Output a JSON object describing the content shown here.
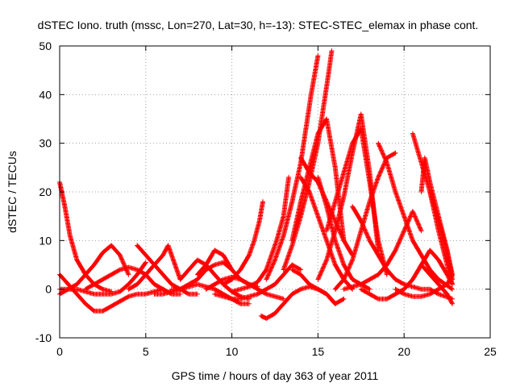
{
  "chart_data": {
    "type": "scatter",
    "title": "dSTEC Iono. truth (mssc, Lon=270, Lat=30, h=-13): STEC-STEC_elemax in phase cont.",
    "xlabel": "GPS time / hours of day 363 of year 2011",
    "ylabel": "dSTEC  / TECUs",
    "xlim": [
      0,
      25
    ],
    "ylim": [
      -10,
      50
    ],
    "xticks": [
      0,
      5,
      10,
      15,
      20,
      25
    ],
    "yticks": [
      -10,
      0,
      10,
      20,
      30,
      40,
      50
    ],
    "grid": true,
    "marker": "+",
    "color": "#ff0000",
    "series": [
      {
        "x": [
          0.0,
          0.3,
          0.6,
          1.0,
          1.5,
          2.0,
          2.5,
          3.0
        ],
        "y": [
          22,
          17,
          11,
          6,
          3,
          1,
          0,
          -0.5
        ]
      },
      {
        "x": [
          0.0,
          0.5,
          1.0,
          1.5,
          2.0,
          2.5,
          3.0,
          3.5,
          4.0,
          4.5,
          5.0,
          5.5,
          6.0
        ],
        "y": [
          3,
          1,
          -1,
          -3,
          -4.5,
          -4.5,
          -3.5,
          -2.5,
          -1.5,
          -1,
          -1,
          -0.5,
          0
        ]
      },
      {
        "x": [
          0.0,
          0.5,
          1.0,
          1.5,
          2.0,
          2.5,
          3.0,
          3.5,
          4.0
        ],
        "y": [
          0,
          0,
          1,
          3,
          5,
          7.5,
          9,
          7,
          3
        ]
      },
      {
        "x": [
          0.0,
          0.5,
          1.0,
          1.5,
          2.0,
          2.5,
          3.0,
          3.5,
          4.0,
          4.5,
          5.0
        ],
        "y": [
          -1,
          0,
          0,
          -0.5,
          -1,
          -1,
          -1,
          -0.5,
          1,
          3,
          5.5
        ]
      },
      {
        "x": [
          1.5,
          2.0,
          2.5,
          3.0,
          3.5,
          4.0,
          4.5,
          5.0,
          5.5,
          6.0,
          6.5,
          7.0
        ],
        "y": [
          0,
          1,
          2,
          3,
          4,
          4.5,
          4,
          3,
          1,
          0,
          -1,
          -1
        ]
      },
      {
        "x": [
          4.5,
          5.0,
          5.5,
          6.0,
          6.5,
          7.0,
          7.5,
          8.0
        ],
        "y": [
          9,
          7,
          5,
          3,
          1,
          0,
          -1,
          -1
        ]
      },
      {
        "x": [
          4.0,
          4.5,
          5.0,
          5.5,
          6.0,
          6.3,
          6.6,
          7.0
        ],
        "y": [
          0,
          1,
          3,
          5,
          7,
          9,
          6,
          2
        ]
      },
      {
        "x": [
          5.5,
          6.0,
          6.5,
          7.0,
          7.5,
          8.0,
          8.5,
          9.0,
          9.5,
          10.0
        ],
        "y": [
          -1,
          -1,
          -0.5,
          0,
          1,
          2,
          4,
          5,
          5.5,
          4
        ]
      },
      {
        "x": [
          6.5,
          7.0,
          7.5,
          8.0,
          8.5,
          9.0,
          9.5,
          10.0,
          10.5,
          11.0
        ],
        "y": [
          0,
          0,
          0.5,
          1,
          0.5,
          0,
          -1,
          -2,
          -3,
          -3
        ]
      },
      {
        "x": [
          7.0,
          7.5,
          8.0,
          8.5,
          9.0,
          9.5,
          10.0,
          10.5,
          11.0
        ],
        "y": [
          2,
          4,
          6,
          5,
          3,
          1,
          -0.5,
          -1.5,
          -2
        ]
      },
      {
        "x": [
          8.0,
          8.5,
          9.0,
          9.5,
          10.0,
          10.5,
          11.0,
          11.5
        ],
        "y": [
          3,
          5,
          8,
          7,
          4,
          2,
          1,
          0.5
        ]
      },
      {
        "x": [
          8.5,
          9.0,
          9.5,
          10.0,
          10.5,
          11.0,
          11.5,
          12.0,
          12.5,
          13.0
        ],
        "y": [
          0,
          1,
          2,
          2.5,
          2,
          1,
          0,
          -1,
          -1.5,
          -2
        ]
      },
      {
        "x": [
          9.0,
          9.5,
          10.0,
          10.5,
          11.0,
          11.5,
          12.0,
          12.5,
          13.0,
          13.5,
          14.0
        ],
        "y": [
          -1,
          -1.5,
          -2,
          -2,
          -1.5,
          -1,
          0,
          1,
          3,
          5,
          4
        ]
      },
      {
        "x": [
          9.5,
          10.0,
          10.5,
          11.0,
          11.3,
          11.6,
          11.8
        ],
        "y": [
          1,
          2,
          4,
          7,
          10,
          14,
          18
        ]
      },
      {
        "x": [
          10.0,
          10.5,
          11.0,
          11.5,
          12.0,
          12.3,
          12.6,
          13.0,
          13.3
        ],
        "y": [
          -0.5,
          0,
          0.5,
          1.5,
          4,
          7,
          10,
          15,
          23
        ]
      },
      {
        "x": [
          11.7,
          12.0,
          12.5,
          13.0,
          13.5,
          14.0,
          14.5,
          15.0,
          15.5,
          16.0,
          16.5
        ],
        "y": [
          -5.5,
          -6,
          -5,
          -3,
          -1,
          0,
          0.5,
          0,
          -1,
          -3,
          -2
        ]
      },
      {
        "x": [
          12.0,
          12.5,
          13.0,
          13.5,
          14.0,
          14.3,
          14.6,
          15.0
        ],
        "y": [
          2,
          6,
          11,
          18,
          26,
          33,
          40,
          48
        ]
      },
      {
        "x": [
          13.0,
          13.5,
          14.0,
          14.5,
          15.0,
          15.3,
          15.6,
          15.8
        ],
        "y": [
          4,
          9,
          15,
          22,
          30,
          37,
          44,
          49
        ]
      },
      {
        "x": [
          13.5,
          14.0,
          14.5,
          15.0,
          15.5,
          16.0,
          16.5
        ],
        "y": [
          10,
          18,
          25,
          32,
          35,
          25,
          10
        ]
      },
      {
        "x": [
          14.0,
          14.5,
          15.0,
          15.5,
          16.0,
          16.5,
          17.0
        ],
        "y": [
          23,
          20,
          15,
          10,
          5,
          2,
          0
        ]
      },
      {
        "x": [
          14.0,
          14.5,
          15.0,
          15.5,
          16.0,
          16.5,
          17.0
        ],
        "y": [
          27,
          24,
          22,
          18,
          14,
          10,
          7
        ]
      },
      {
        "x": [
          13.5,
          14.0,
          14.5,
          15.0,
          15.5,
          16.0
        ],
        "y": [
          4,
          3,
          1,
          0,
          -1,
          -3
        ]
      },
      {
        "x": [
          15.0,
          15.5,
          16.0,
          16.5,
          17.0,
          17.5,
          18.0
        ],
        "y": [
          23,
          17,
          10,
          5,
          2,
          1,
          0
        ]
      },
      {
        "x": [
          15.0,
          15.5,
          16.0,
          16.5,
          17.0,
          17.5,
          18.0,
          18.5
        ],
        "y": [
          2,
          6,
          12,
          19,
          28,
          36,
          24,
          8
        ]
      },
      {
        "x": [
          15.5,
          16.0,
          16.5,
          17.0,
          17.5,
          18.0,
          18.5,
          19.0
        ],
        "y": [
          12,
          18,
          24,
          30,
          33,
          22,
          10,
          3
        ]
      },
      {
        "x": [
          16.0,
          16.5,
          17.0,
          17.5,
          18.0,
          18.5,
          19.0,
          19.5
        ],
        "y": [
          0,
          2,
          6,
          12,
          18,
          23,
          27,
          28
        ]
      },
      {
        "x": [
          16.5,
          17.0,
          17.5,
          18.0,
          18.5,
          19.0,
          19.5,
          20.0,
          20.5,
          21.0
        ],
        "y": [
          0,
          0.5,
          1,
          2,
          3,
          5,
          8,
          12,
          16,
          12
        ]
      },
      {
        "x": [
          17.5,
          18.0,
          18.5,
          19.0,
          19.5,
          20.0,
          20.5,
          21.0,
          21.5,
          22.0,
          22.5,
          22.8
        ],
        "y": [
          0,
          -1,
          -2,
          -2,
          -1,
          0,
          2,
          5,
          8,
          6,
          3,
          1
        ]
      },
      {
        "x": [
          17.0,
          17.5,
          18.0,
          18.5,
          19.0,
          19.5,
          20.0,
          20.5,
          21.0,
          21.5,
          22.0,
          22.8
        ],
        "y": [
          17,
          14,
          10,
          7,
          4,
          2,
          1,
          0.5,
          0,
          0,
          -1,
          -2
        ]
      },
      {
        "x": [
          18.5,
          19.0,
          19.5,
          20.0,
          20.5,
          21.0,
          21.5,
          22.0,
          22.8
        ],
        "y": [
          30,
          26,
          20,
          15,
          10,
          7,
          4,
          2,
          0
        ]
      },
      {
        "x": [
          20.5,
          21.0,
          21.5,
          22.0,
          22.5,
          22.8
        ],
        "y": [
          32,
          26,
          20,
          14,
          8,
          3
        ]
      },
      {
        "x": [
          21.0,
          21.2,
          21.5,
          22.0,
          22.5,
          22.8
        ],
        "y": [
          20,
          27,
          22,
          15,
          8,
          2
        ]
      },
      {
        "x": [
          21.5,
          22.0,
          22.5,
          22.8
        ],
        "y": [
          20,
          12,
          5,
          1
        ]
      },
      {
        "x": [
          19.5,
          20.0,
          20.5,
          21.0,
          21.5,
          22.0,
          22.5,
          22.8
        ],
        "y": [
          0,
          -1,
          -1.5,
          -1.5,
          -1,
          0,
          1,
          3
        ]
      },
      {
        "x": [
          21.0,
          21.5,
          22.0,
          22.5,
          22.8
        ],
        "y": [
          5,
          3,
          1,
          -1,
          -3
        ]
      }
    ]
  }
}
